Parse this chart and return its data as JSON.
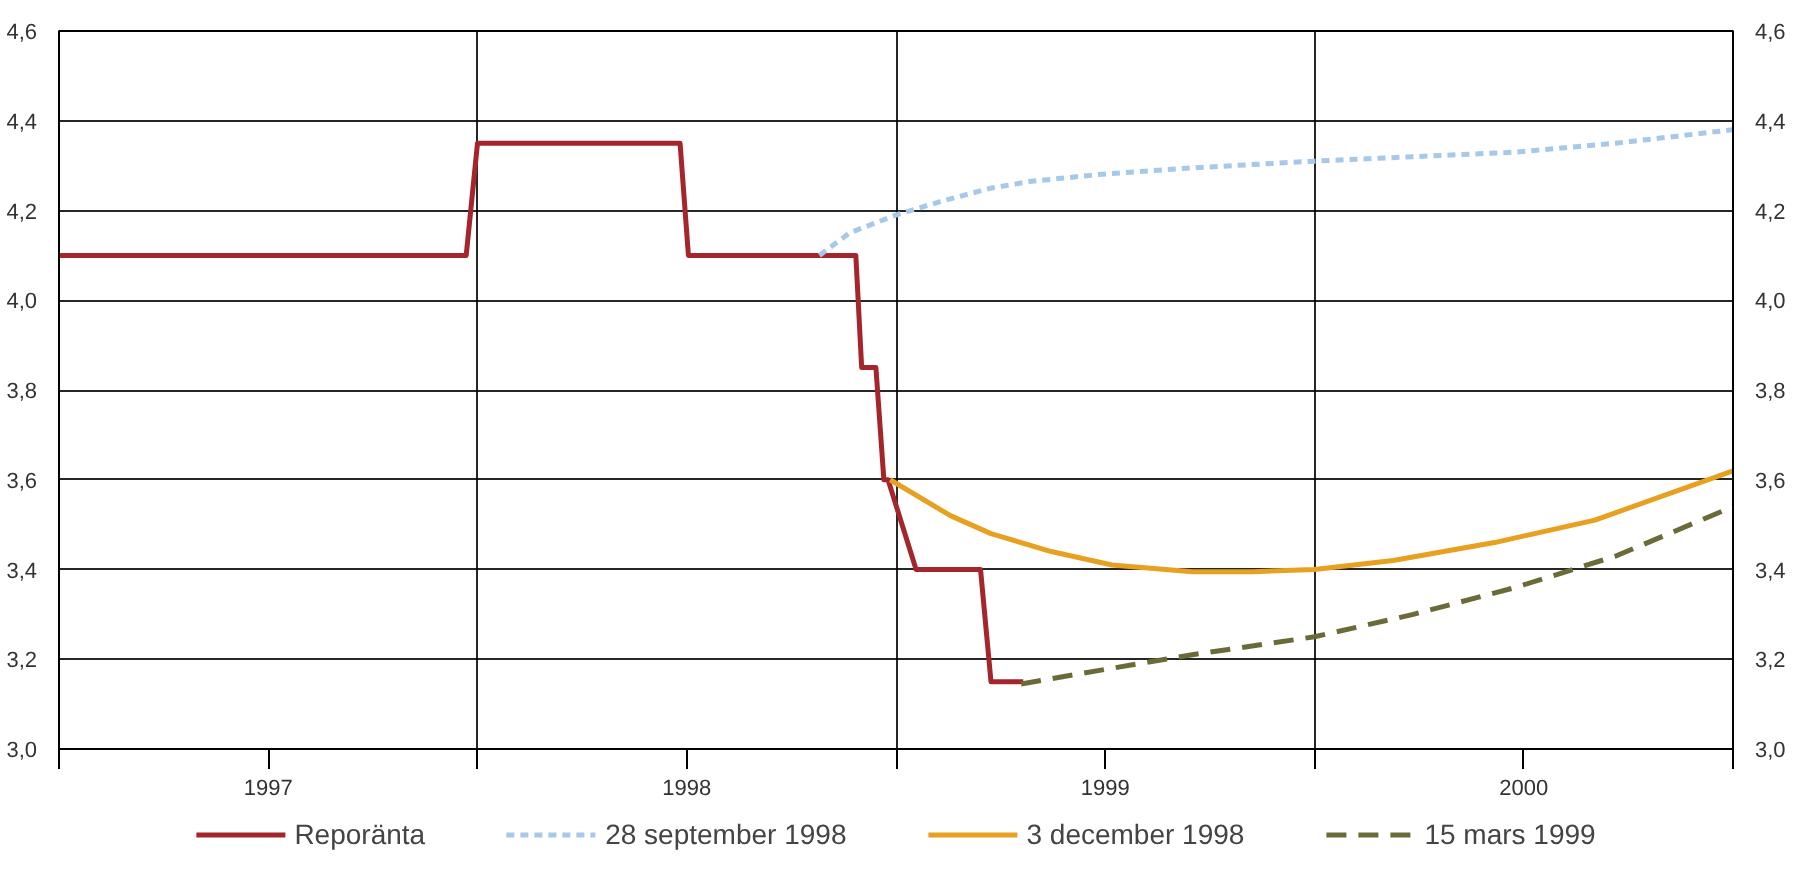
{
  "chart_data": {
    "type": "line",
    "xlim": [
      1997,
      2001
    ],
    "xticks": [
      {
        "value": 1997,
        "label": null
      },
      {
        "value": 1997.5,
        "label": "1997"
      },
      {
        "value": 1998,
        "label": null
      },
      {
        "value": 1998.5,
        "label": "1998"
      },
      {
        "value": 1999,
        "label": null
      },
      {
        "value": 1999.5,
        "label": "1999"
      },
      {
        "value": 2000,
        "label": null
      },
      {
        "value": 2000.5,
        "label": "2000"
      },
      {
        "value": 2001,
        "label": null
      }
    ],
    "ylim": [
      3.0,
      4.6
    ],
    "yticks": [
      {
        "value": 3.0,
        "label": "3,0"
      },
      {
        "value": 3.2,
        "label": "3,2"
      },
      {
        "value": 3.4,
        "label": "3,4"
      },
      {
        "value": 3.6,
        "label": "3,6"
      },
      {
        "value": 3.8,
        "label": "3,8"
      },
      {
        "value": 4.0,
        "label": "4,0"
      },
      {
        "value": 4.2,
        "label": "4,2"
      },
      {
        "value": 4.4,
        "label": "4,4"
      },
      {
        "value": 4.6,
        "label": "4,6"
      }
    ],
    "y2lim": [
      3.0,
      4.6
    ],
    "y2ticks": [
      {
        "value": 3.0,
        "label": "3,0"
      },
      {
        "value": 3.2,
        "label": "3,2"
      },
      {
        "value": 3.4,
        "label": "3,4"
      },
      {
        "value": 3.6,
        "label": "3,6"
      },
      {
        "value": 3.8,
        "label": "3,8"
      },
      {
        "value": 4.0,
        "label": "4,0"
      },
      {
        "value": 4.2,
        "label": "4,2"
      },
      {
        "value": 4.4,
        "label": "4,4"
      },
      {
        "value": 4.6,
        "label": "4,6"
      }
    ],
    "grid": true,
    "legend": "bottom",
    "series": [
      {
        "name": "Reporänta",
        "color": "#a4262c",
        "line_style": "solid",
        "x": [
          1997.0,
          1997.973,
          1998.0,
          1998.484,
          1998.504,
          1998.904,
          1998.918,
          1998.952,
          1998.971,
          1998.981,
          1999.048,
          1999.202,
          1999.227,
          1999.304
        ],
        "values": [
          4.1,
          4.1,
          4.35,
          4.35,
          4.1,
          4.1,
          3.85,
          3.85,
          3.6,
          3.6,
          3.4,
          3.4,
          3.15,
          3.15
        ]
      },
      {
        "name": "28 september 1998",
        "color": "#a8c8e8",
        "line_style": "dotted",
        "x": [
          1998.817,
          1998.889,
          1999.0,
          1999.106,
          1999.227,
          1999.323,
          1999.482,
          1999.708,
          2000.0,
          2000.236,
          2000.48,
          2000.72,
          2001.0
        ],
        "values": [
          4.1,
          4.15,
          4.19,
          4.22,
          4.25,
          4.265,
          4.28,
          4.295,
          4.31,
          4.32,
          4.33,
          4.35,
          4.38
        ]
      },
      {
        "name": "3 december 1998",
        "color": "#e8a020",
        "line_style": "solid",
        "x": [
          1998.986,
          1999.13,
          1999.227,
          1999.371,
          1999.516,
          1999.708,
          1999.853,
          2000.0,
          2000.188,
          2000.43,
          2000.67,
          2001.0
        ],
        "values": [
          3.6,
          3.52,
          3.48,
          3.44,
          3.41,
          3.395,
          3.395,
          3.4,
          3.42,
          3.46,
          3.51,
          3.62
        ]
      },
      {
        "name": "15 mars 1999",
        "color": "#6b6b3a",
        "line_style": "dashed",
        "x": [
          1999.299,
          1999.516,
          1999.708,
          2000.0,
          2000.236,
          2000.48,
          2000.72,
          2001.0
        ],
        "values": [
          3.145,
          3.18,
          3.21,
          3.25,
          3.3,
          3.36,
          3.43,
          3.54
        ]
      }
    ]
  }
}
